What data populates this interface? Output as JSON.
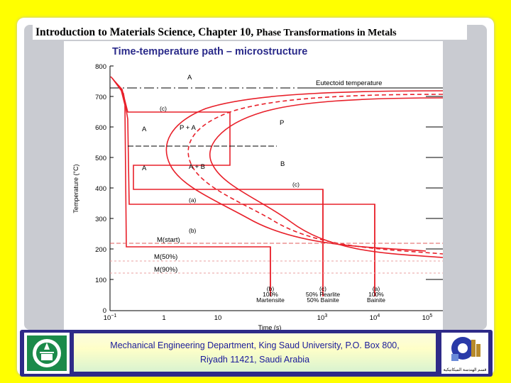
{
  "header": {
    "title_main": "Introduction to Materials Science, Chapter 10,",
    "title_sub": "Phase Transformations in Metals"
  },
  "figure": {
    "title": "Time-temperature path – microstructure",
    "ylabel": "Temperature (°C)",
    "xlabel": "Time (s)",
    "y_ticks": [
      "800",
      "700",
      "600",
      "500",
      "400",
      "300",
      "200",
      "100",
      "0"
    ],
    "x_ticks": [
      "10",
      "1",
      "10",
      "10",
      "10",
      "10"
    ],
    "x_exponents": [
      "−1",
      "",
      "",
      "3",
      "4",
      "5"
    ],
    "labels": {
      "A_top": "A",
      "eutectoid": "Eutectoid temperature",
      "A_mid": "A",
      "P_plus_A": "P + A",
      "P": "P",
      "A_low": "A",
      "A_plus_B": "A + B",
      "B": "B",
      "c_top": "(c)",
      "c_right": "(c)",
      "a_path": "(a)",
      "b_path": "(b)",
      "m_start": "M(start)",
      "m50": "M(50%)",
      "m90": "M(90%)"
    },
    "bottom_labels": [
      {
        "letter": "(b)",
        "line1": "100%",
        "line2": "Martensite"
      },
      {
        "letter": "(c)",
        "line1": "50% Pearlite",
        "line2": "50% Bainite"
      },
      {
        "letter": "(a)",
        "line1": "100%",
        "line2": "Bainite"
      }
    ]
  },
  "footer": {
    "line1": "Mechanical Engineering Department, King Saud University, P.O. Box 800,",
    "line2": "Riyadh 11421, Saudi Arabia",
    "right_logo_text": "قسم الهندسة الميكانيكية"
  },
  "colors": {
    "background": "#ffff00",
    "curve_red": "#e8202a",
    "footer_blue": "#2e2a88",
    "footer_text": "#1a1a9a",
    "figure_title": "#2a2a8a"
  }
}
